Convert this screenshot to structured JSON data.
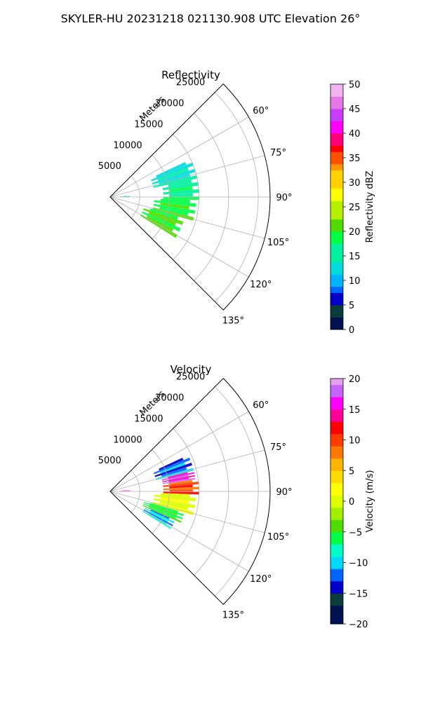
{
  "figure": {
    "title": "SKYLER-HU  20231218  021130.908 UTC Elevation 26°"
  },
  "chart_data": [
    {
      "type": "polar-sector",
      "title": "Reflectivity",
      "range_label": "Meters",
      "range_ticks": [
        5000,
        10000,
        15000,
        20000,
        25000
      ],
      "r_max": 27000,
      "angle_range": [
        45,
        135
      ],
      "angle_ticks": [
        "60°",
        "75°",
        "90°",
        "105°",
        "120°",
        "135°"
      ],
      "colorbar": {
        "label": "Reflectivity dBZ",
        "min": 0,
        "max": 50,
        "ticks": [
          "0",
          "5",
          "10",
          "15",
          "20",
          "25",
          "30",
          "35",
          "40",
          "45",
          "50"
        ]
      },
      "echo_regions": [
        {
          "az_from": 65,
          "az_to": 78,
          "r_from": 8000,
          "r_to": 14500,
          "value": 13
        },
        {
          "az_from": 78,
          "az_to": 92,
          "r_from": 9500,
          "r_to": 14500,
          "value": 17
        },
        {
          "az_from": 92,
          "az_to": 106,
          "r_from": 8000,
          "r_to": 14000,
          "value": 19
        },
        {
          "az_from": 106,
          "az_to": 122,
          "r_from": 6500,
          "r_to": 12500,
          "value": 21
        },
        {
          "az_from": 86,
          "az_to": 90,
          "r_from": 2200,
          "r_to": 2800,
          "value": 12
        }
      ]
    },
    {
      "type": "polar-sector",
      "title": "Velocity",
      "range_label": "Meters",
      "range_ticks": [
        5000,
        10000,
        15000,
        20000,
        25000
      ],
      "r_max": 27000,
      "angle_range": [
        45,
        135
      ],
      "angle_ticks": [
        "60°",
        "75°",
        "90°",
        "105°",
        "120°",
        "135°"
      ],
      "colorbar": {
        "label": "Velocity (m/s)",
        "min": -20,
        "max": 20,
        "ticks": [
          "−20",
          "−15",
          "−10",
          "−5",
          "0",
          "5",
          "10",
          "15",
          "20"
        ]
      },
      "echo_regions": [
        {
          "az_from": 65,
          "az_to": 76,
          "r_from": 8500,
          "r_to": 14000,
          "value": -12
        },
        {
          "az_from": 76,
          "az_to": 82,
          "r_from": 9500,
          "r_to": 14000,
          "value": 16
        },
        {
          "az_from": 82,
          "az_to": 92,
          "r_from": 9500,
          "r_to": 14500,
          "value": 10
        },
        {
          "az_from": 92,
          "az_to": 106,
          "r_from": 8000,
          "r_to": 14000,
          "value": 1
        },
        {
          "az_from": 106,
          "az_to": 114,
          "r_from": 6500,
          "r_to": 12500,
          "value": -5
        },
        {
          "az_from": 114,
          "az_to": 122,
          "r_from": 7000,
          "r_to": 11500,
          "value": -10
        },
        {
          "az_from": 86,
          "az_to": 90,
          "r_from": 2200,
          "r_to": 2800,
          "value": 16
        }
      ]
    }
  ]
}
